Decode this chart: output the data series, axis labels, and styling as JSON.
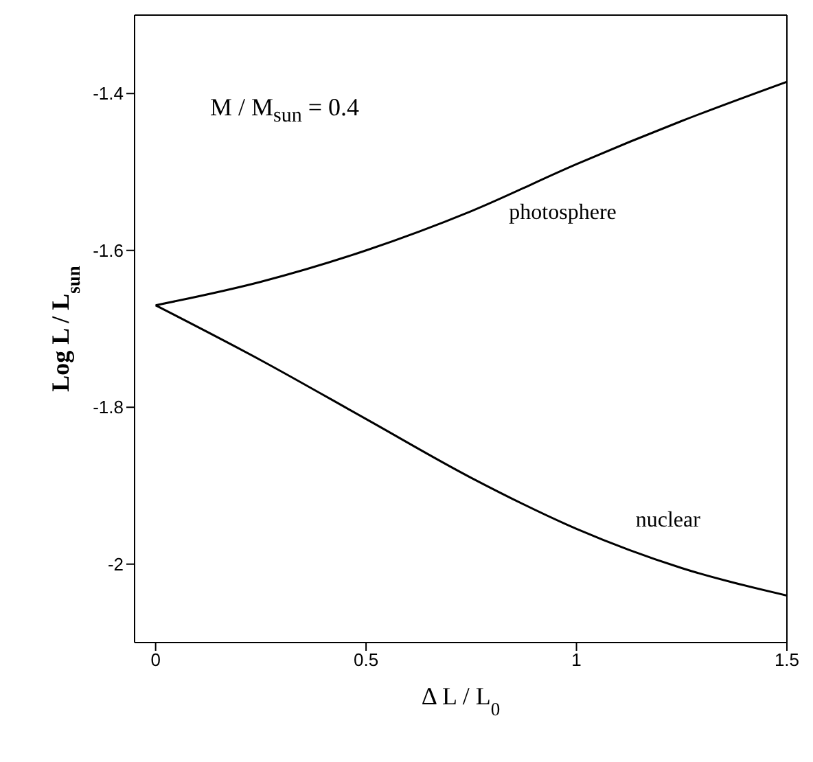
{
  "chart_data": {
    "type": "line",
    "xlabel": "Δ L / L$_{0}$",
    "ylabel": "Log  L / L$_{sun}$",
    "annotations": [
      "M / M$_{sun}$ =  0.4"
    ],
    "x": [
      0,
      0.25,
      0.5,
      0.75,
      1,
      1.25,
      1.5
    ],
    "series": [
      {
        "name": "photosphere",
        "color": "#000000",
        "values": [
          -1.67,
          -1.64,
          -1.6,
          -1.55,
          -1.49,
          -1.435,
          -1.385
        ]
      },
      {
        "name": "nuclear",
        "color": "#000000",
        "values": [
          -1.67,
          -1.74,
          -1.815,
          -1.89,
          -1.955,
          -2.005,
          -2.04
        ]
      }
    ],
    "xlim": [
      -0.05,
      1.5
    ],
    "ylim": [
      -2.1,
      -1.3
    ],
    "xticks": [
      0,
      0.5,
      1,
      1.5
    ],
    "yticks": [
      -2,
      -1.8,
      -1.6,
      -1.4
    ],
    "grid": false,
    "legend": false,
    "marker": "none",
    "line_style": "solid"
  }
}
